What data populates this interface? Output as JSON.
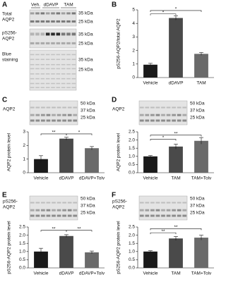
{
  "figure_a": {
    "panel": "A",
    "lanes": [
      "Veh.",
      "dDAVP",
      "TAM"
    ],
    "blots": [
      {
        "label_lines": [
          "Total",
          "AQP2"
        ],
        "markers": [
          "35 kDa",
          "25 kDa"
        ]
      },
      {
        "label_lines": [
          "pS256-",
          "AQP2"
        ],
        "markers": [
          "35 kDa",
          "25 kDa"
        ]
      },
      {
        "label_lines": [
          "Blue",
          "staining"
        ],
        "markers": [
          "35 kDa",
          "25 kDa"
        ]
      }
    ]
  },
  "chart_data": [
    {
      "type": "bar",
      "panel": "B",
      "ylabel": "pS256-AQP2/total AQP2",
      "categories": [
        "Vehicle",
        "dDAVP",
        "TAM"
      ],
      "values": [
        0.95,
        4.4,
        1.75
      ],
      "errors": [
        0.1,
        0.15,
        0.1
      ],
      "colors": [
        "#1a1a1a",
        "#4a4a4a",
        "#6a6a6a"
      ],
      "ylim": [
        0,
        5
      ],
      "yticks": [
        0,
        1,
        2,
        3,
        4,
        5
      ],
      "annotations": [
        {
          "text": "*",
          "between": [
            0,
            1
          ],
          "y": 4.7
        },
        {
          "text": "*",
          "between": [
            0,
            2
          ],
          "y": 4.95
        }
      ]
    },
    {
      "type": "bar",
      "panel": "C",
      "blot": {
        "label_lines": [
          "AQP2"
        ],
        "markers": [
          "50 kDa",
          "37 kDa",
          "25 kDa"
        ]
      },
      "ylabel": "AQP2 protein level",
      "categories": [
        "Vehicle",
        "dDAVP",
        "dDAVP+Tolv"
      ],
      "values": [
        1.0,
        2.5,
        1.8
      ],
      "errors": [
        0.25,
        0.1,
        0.12
      ],
      "colors": [
        "#1a1a1a",
        "#4a4a4a",
        "#6a6a6a"
      ],
      "ylim": [
        0,
        3
      ],
      "yticks": [
        0,
        1,
        2,
        3
      ],
      "annotations": [
        {
          "text": "**",
          "between": [
            0,
            1
          ],
          "y": 2.85
        },
        {
          "text": "*",
          "between": [
            1,
            2
          ],
          "y": 2.85
        }
      ]
    },
    {
      "type": "bar",
      "panel": "D",
      "blot": {
        "label_lines": [
          "AQP2"
        ],
        "markers": [
          "50 kDa",
          "37 kDa",
          "25 kDa"
        ]
      },
      "ylabel": "AQP2 protein level",
      "categories": [
        "Vehicle",
        "TAM",
        "TAM+Tolv"
      ],
      "values": [
        1.0,
        1.6,
        1.95
      ],
      "errors": [
        0.05,
        0.15,
        0.2
      ],
      "colors": [
        "#1a1a1a",
        "#4a4a4a",
        "#6a6a6a"
      ],
      "ylim": [
        0,
        2.5
      ],
      "yticks": [
        {
          "value": 0,
          "label": "0.0"
        },
        {
          "value": 0.5,
          "label": "0.5"
        },
        {
          "value": 1,
          "label": "1.0"
        },
        {
          "value": 1.5,
          "label": "1.5"
        },
        {
          "value": 2,
          "label": "2.0"
        },
        {
          "value": 2.5,
          "label": "2.5"
        }
      ],
      "annotations": [
        {
          "text": "*",
          "between": [
            0,
            1
          ],
          "y": 2.05
        },
        {
          "text": "**",
          "between": [
            0,
            2
          ],
          "y": 2.3
        }
      ]
    },
    {
      "type": "bar",
      "panel": "E",
      "blot": {
        "label_lines": [
          "pS256-",
          "AQP2"
        ],
        "markers": [
          "50 kDa",
          "37 kDa",
          "25 kDa"
        ]
      },
      "ylabel": "pS256-AQP2 protein level",
      "categories": [
        "Vehicle",
        "dDAVP",
        "dDAVP+Tolv"
      ],
      "values": [
        1.0,
        1.95,
        0.95
      ],
      "errors": [
        0.2,
        0.08,
        0.08
      ],
      "colors": [
        "#1a1a1a",
        "#4a4a4a",
        "#6a6a6a"
      ],
      "ylim": [
        0,
        2.5
      ],
      "yticks": [
        {
          "value": 0,
          "label": "0.0"
        },
        {
          "value": 0.5,
          "label": "0.5"
        },
        {
          "value": 1,
          "label": "1.0"
        },
        {
          "value": 1.5,
          "label": "1.5"
        },
        {
          "value": 2,
          "label": "2.0"
        },
        {
          "value": 2.5,
          "label": "2.5"
        }
      ],
      "annotations": [
        {
          "text": "**",
          "between": [
            0,
            1
          ],
          "y": 2.3
        },
        {
          "text": "**",
          "between": [
            1,
            2
          ],
          "y": 2.3
        }
      ]
    },
    {
      "type": "bar",
      "panel": "F",
      "blot": {
        "label_lines": [
          "pS256-",
          "AQP2"
        ],
        "markers": [
          "50 kDa",
          "37 kDa",
          "25 kDa"
        ]
      },
      "ylabel": "pS256-AQP2 protein level",
      "categories": [
        "Vehicle",
        "TAM",
        "TAM+Tolv"
      ],
      "values": [
        1.0,
        1.8,
        1.85
      ],
      "errors": [
        0.05,
        0.12,
        0.15
      ],
      "colors": [
        "#1a1a1a",
        "#4a4a4a",
        "#6a6a6a"
      ],
      "ylim": [
        0,
        2.5
      ],
      "yticks": [
        {
          "value": 0,
          "label": "0.0"
        },
        {
          "value": 0.5,
          "label": "0.5"
        },
        {
          "value": 1,
          "label": "1.0"
        },
        {
          "value": 1.5,
          "label": "1.5"
        },
        {
          "value": 2,
          "label": "2.0"
        },
        {
          "value": 2.5,
          "label": "2.5"
        }
      ],
      "annotations": [
        {
          "text": "**",
          "between": [
            0,
            1
          ],
          "y": 2.15
        },
        {
          "text": "**",
          "between": [
            0,
            2
          ],
          "y": 2.4
        }
      ]
    }
  ]
}
